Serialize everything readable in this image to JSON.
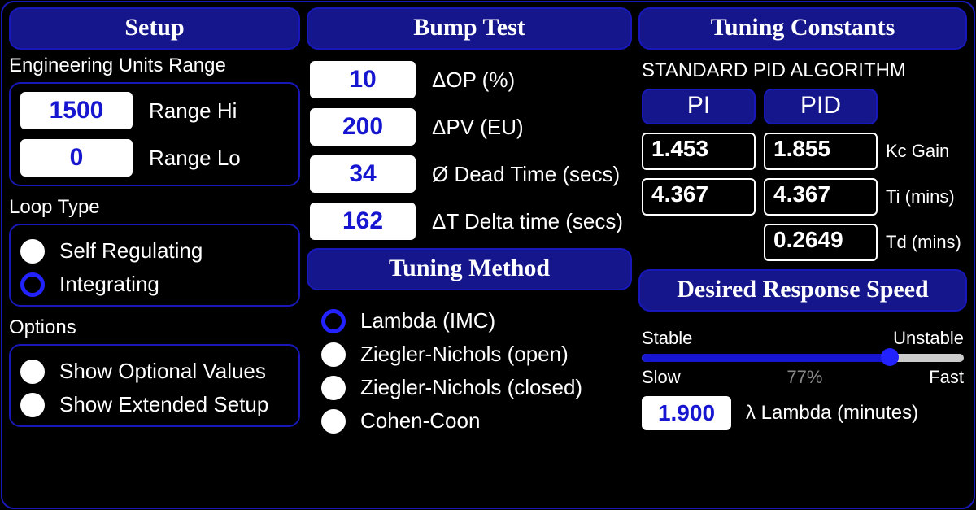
{
  "colors": {
    "panel_blue": "#16168c",
    "border_blue": "#1818b8",
    "input_text_blue": "#1616d0",
    "accent_blue": "#2222ff",
    "background": "#000000",
    "white": "#ffffff",
    "slider_inactive": "#cccccc",
    "percent_gray": "#888888"
  },
  "typography": {
    "header_font": "Times New Roman",
    "body_font": "Arial",
    "header_fontsize": 30,
    "label_fontsize": 24
  },
  "setup": {
    "title": "Setup",
    "eu_range_label": "Engineering Units Range",
    "range_hi_value": "1500",
    "range_hi_label": "Range Hi",
    "range_lo_value": "0",
    "range_lo_label": "Range Lo",
    "loop_type_label": "Loop Type",
    "loop_type": {
      "self_regulating": {
        "label": "Self Regulating",
        "selected": false
      },
      "integrating": {
        "label": "Integrating",
        "selected": true
      }
    },
    "options_label": "Options",
    "options": {
      "show_optional_values": {
        "label": "Show Optional Values",
        "selected": false
      },
      "show_extended_setup": {
        "label": "Show Extended Setup",
        "selected": false
      }
    }
  },
  "bump_test": {
    "title": "Bump Test",
    "rows": {
      "dop": {
        "value": "10",
        "label": "ΔOP (%)"
      },
      "dpv": {
        "value": "200",
        "label": "ΔPV (EU)"
      },
      "dead_time": {
        "value": "34",
        "label": "Ø Dead Time (secs)"
      },
      "delta_t": {
        "value": "162",
        "label": "ΔT Delta time (secs)"
      }
    }
  },
  "tuning_method": {
    "title": "Tuning Method",
    "options": {
      "lambda": {
        "label": "Lambda (IMC)",
        "selected": true
      },
      "zn_open": {
        "label": "Ziegler-Nichols (open)",
        "selected": false
      },
      "zn_closed": {
        "label": "Ziegler-Nichols (closed)",
        "selected": false
      },
      "cohen": {
        "label": "Cohen-Coon",
        "selected": false
      }
    }
  },
  "tuning_constants": {
    "title": "Tuning Constants",
    "algorithm_label": "STANDARD PID ALGORITHM",
    "columns": {
      "pi": "PI",
      "pid": "PID"
    },
    "rows": {
      "kc": {
        "pi": "1.453",
        "pid": "1.855",
        "label": "Kc Gain"
      },
      "ti": {
        "pi": "4.367",
        "pid": "4.367",
        "label": "Ti (mins)"
      },
      "td": {
        "pi": "",
        "pid": "0.2649",
        "label": "Td (mins)"
      }
    }
  },
  "response_speed": {
    "title": "Desired Response Speed",
    "scale": {
      "left": "Stable",
      "right": "Unstable",
      "slow": "Slow",
      "fast": "Fast"
    },
    "percent": "77%",
    "slider_pct": 77,
    "lambda_value": "1.900",
    "lambda_label": "λ Lambda (minutes)"
  }
}
